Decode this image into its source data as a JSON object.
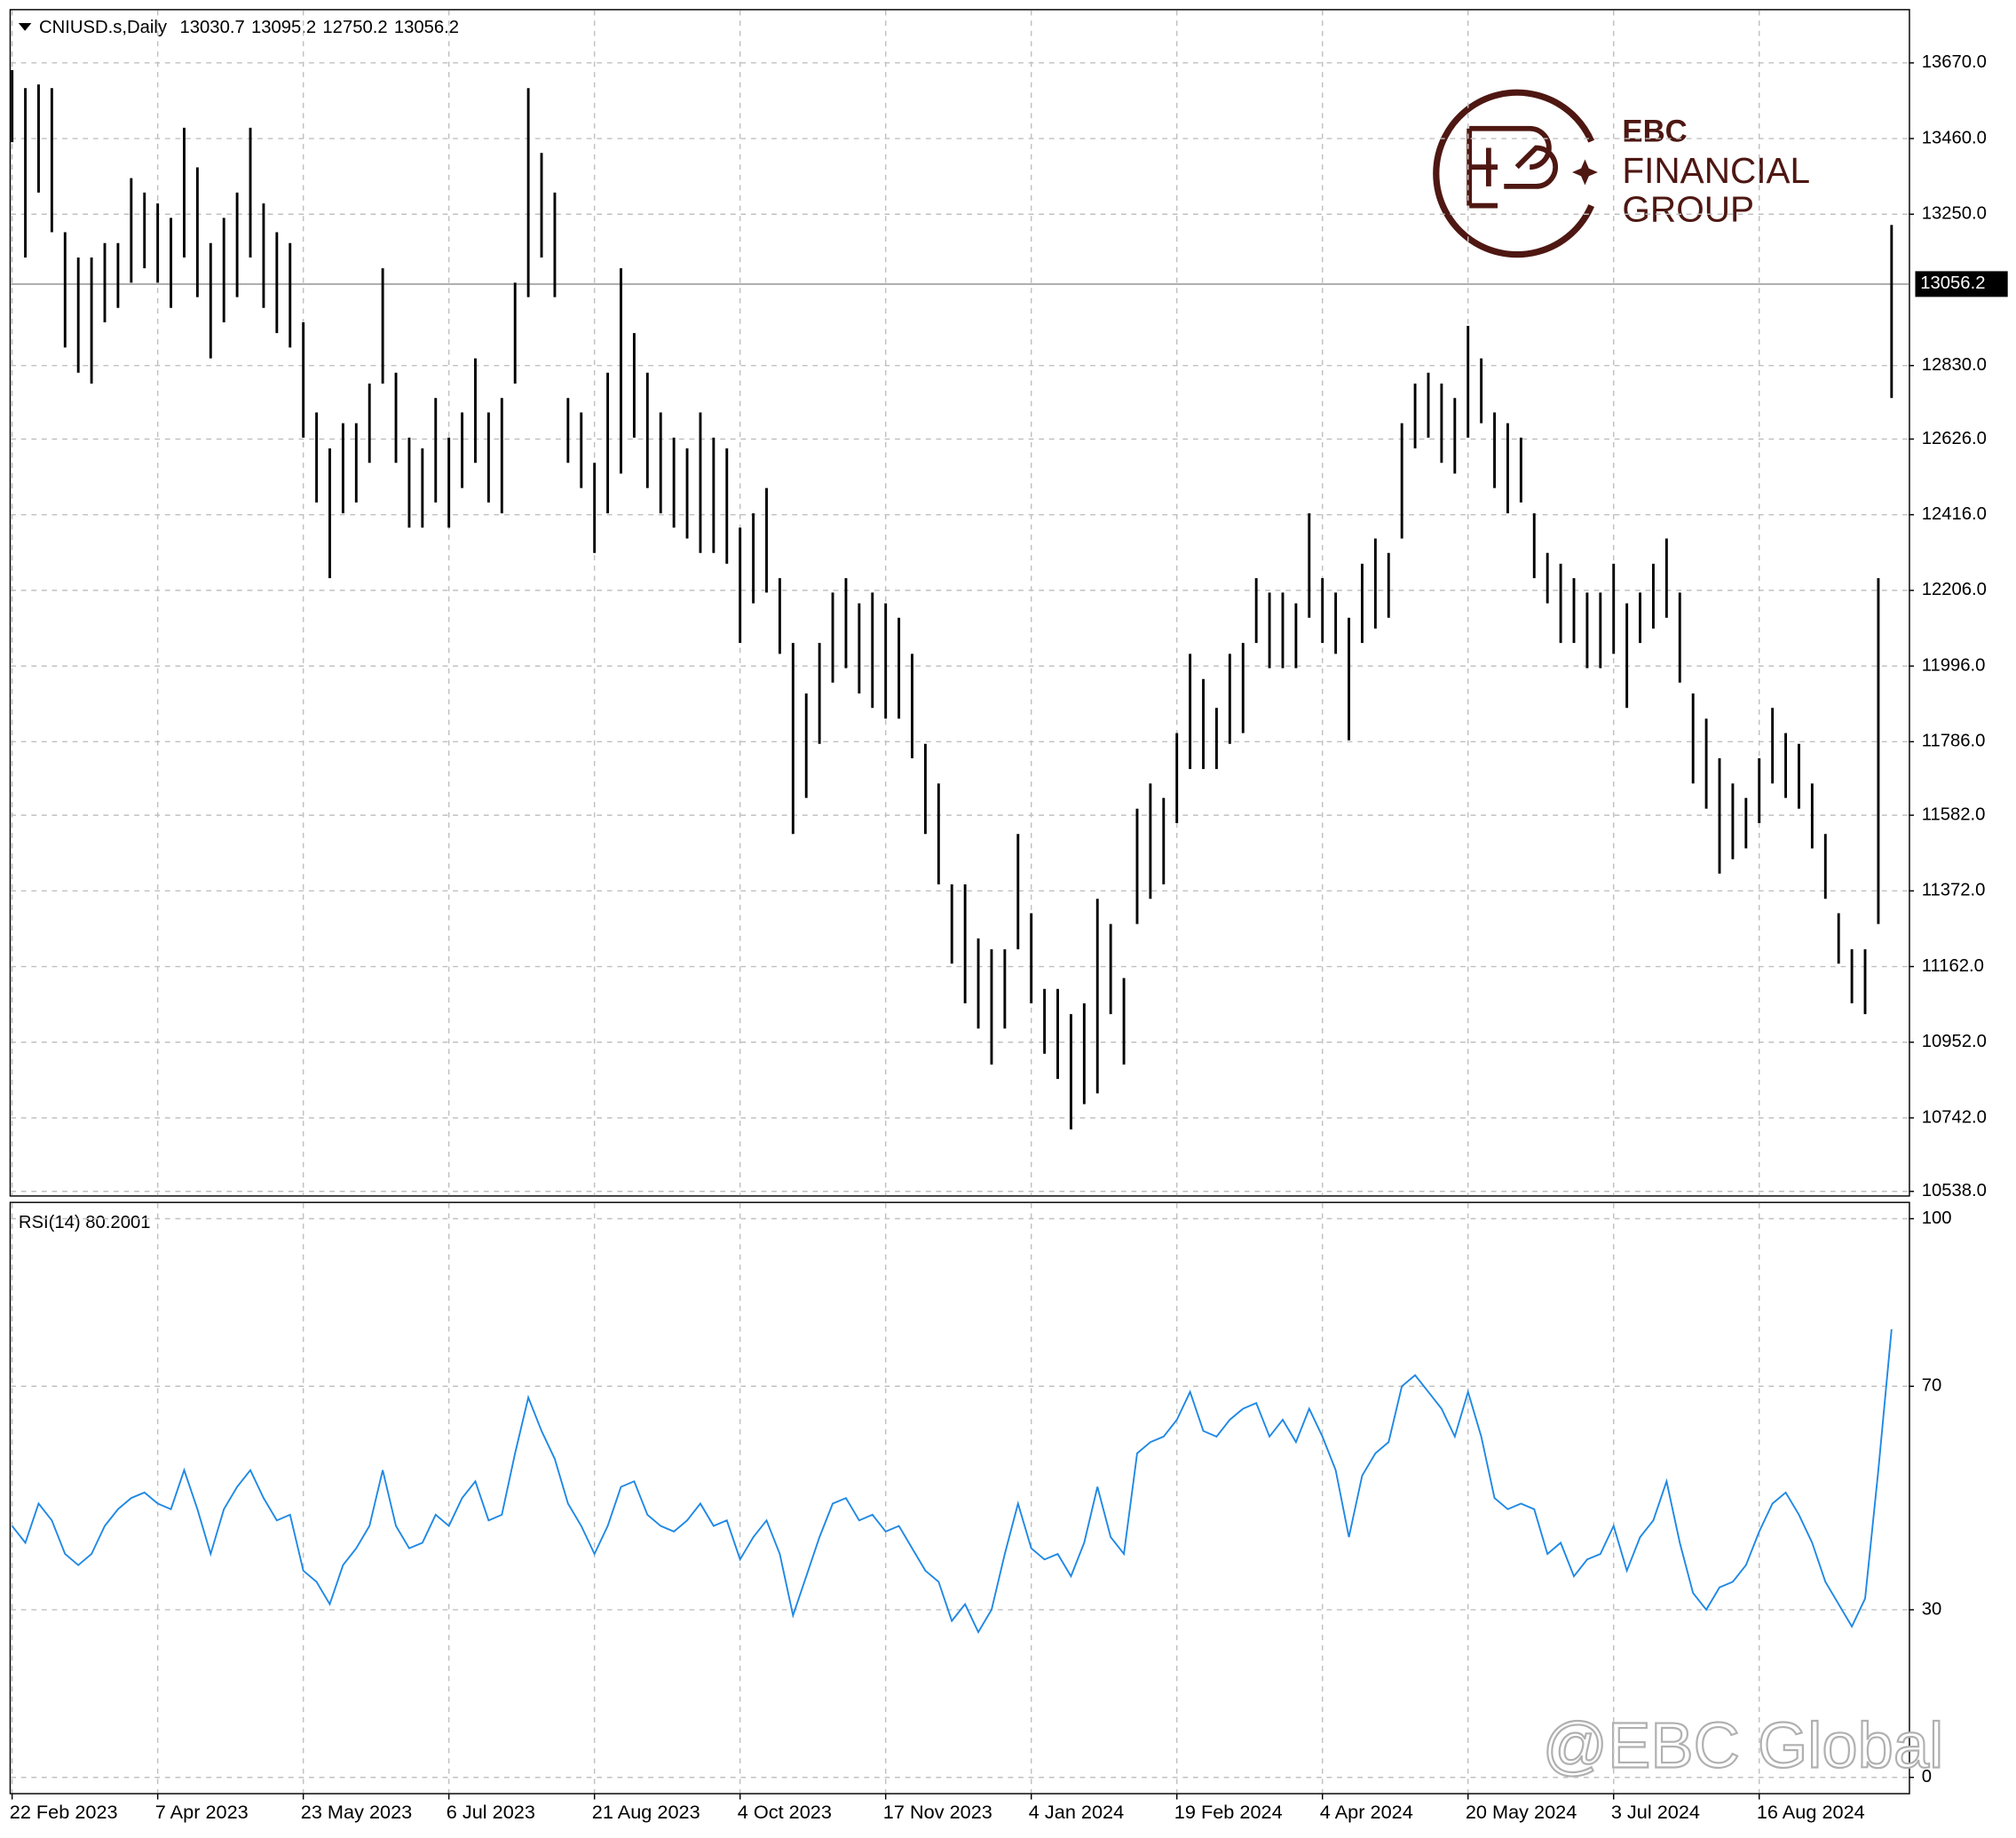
{
  "chart_data": [
    {
      "type": "ohlc",
      "title": "CNIUSD.s,Daily",
      "header_values": [
        13030.7,
        13095.2,
        12750.2,
        13056.2
      ],
      "color": "#000000",
      "last_price": 13056.2,
      "ylim": [
        10527,
        13816
      ],
      "yticks": [
        {
          "value": 13670,
          "label": "13670.0"
        },
        {
          "value": 13460,
          "label": "13460.0"
        },
        {
          "value": 13250,
          "label": "13250.0"
        },
        {
          "value": 12830,
          "label": "12830.0"
        },
        {
          "value": 12626,
          "label": "12626.0"
        },
        {
          "value": 12416,
          "label": "12416.0"
        },
        {
          "value": 12206,
          "label": "12206.0"
        },
        {
          "value": 11996,
          "label": "11996.0"
        },
        {
          "value": 11786,
          "label": "11786.0"
        },
        {
          "value": 11582,
          "label": "11582.0"
        },
        {
          "value": 11372,
          "label": "11372.0"
        },
        {
          "value": 11162,
          "label": "11162.0"
        },
        {
          "value": 10952,
          "label": "10952.0"
        },
        {
          "value": 10742,
          "label": "10742.0"
        },
        {
          "value": 10538,
          "label": "10538.0"
        }
      ],
      "grid": true,
      "categories": [
        "22 Feb 2023",
        null,
        null,
        null,
        null,
        null,
        null,
        null,
        null,
        null,
        null,
        "7 Apr 2023",
        null,
        null,
        null,
        null,
        null,
        null,
        null,
        null,
        null,
        null,
        "23 May 2023",
        null,
        null,
        null,
        null,
        null,
        null,
        null,
        null,
        null,
        null,
        "6 Jul 2023",
        null,
        null,
        null,
        null,
        null,
        null,
        null,
        null,
        null,
        null,
        "21 Aug 2023",
        null,
        null,
        null,
        null,
        null,
        null,
        null,
        null,
        null,
        null,
        "4 Oct 2023",
        null,
        null,
        null,
        null,
        null,
        null,
        null,
        null,
        null,
        null,
        "17 Nov 2023",
        null,
        null,
        null,
        null,
        null,
        null,
        null,
        null,
        null,
        null,
        "4 Jan 2024",
        null,
        null,
        null,
        null,
        null,
        null,
        null,
        null,
        null,
        null,
        "19 Feb 2024",
        null,
        null,
        null,
        null,
        null,
        null,
        null,
        null,
        null,
        null,
        "4 Apr 2024",
        null,
        null,
        null,
        null,
        null,
        null,
        null,
        null,
        null,
        null,
        "20 May 2024",
        null,
        null,
        null,
        null,
        null,
        null,
        null,
        null,
        null,
        null,
        "3 Jul 2024",
        null,
        null,
        null,
        null,
        null,
        null,
        null,
        null,
        null,
        null,
        "16 Aug 2024",
        null,
        null,
        null,
        null,
        null,
        null,
        null,
        null,
        null,
        null
      ],
      "high": [
        13650,
        13600,
        13610,
        13600,
        13200,
        13130,
        13130,
        13170,
        13170,
        13350,
        13310,
        13280,
        13240,
        13490,
        13380,
        13170,
        13240,
        13310,
        13490,
        13280,
        13200,
        13170,
        12950,
        12700,
        12600,
        12670,
        12670,
        12780,
        13100,
        12810,
        12630,
        12600,
        12740,
        12630,
        12700,
        12850,
        12700,
        12740,
        13060,
        13600,
        13420,
        13310,
        12740,
        12700,
        12560,
        12810,
        13100,
        12920,
        12810,
        12700,
        12630,
        12600,
        12700,
        12630,
        12600,
        12380,
        12420,
        12490,
        12240,
        12060,
        11920,
        12060,
        12200,
        12240,
        12170,
        12200,
        12170,
        12130,
        12030,
        11780,
        11670,
        11390,
        11390,
        11240,
        11210,
        11210,
        11530,
        11310,
        11100,
        11100,
        11030,
        11060,
        11350,
        11280,
        11130,
        11600,
        11670,
        11630,
        11810,
        12030,
        11960,
        11880,
        12030,
        12060,
        12240,
        12200,
        12200,
        12170,
        12420,
        12240,
        12200,
        12130,
        12280,
        12350,
        12310,
        12670,
        12780,
        12810,
        12780,
        12740,
        12940,
        12850,
        12700,
        12670,
        12630,
        12420,
        12310,
        12280,
        12240,
        12200,
        12200,
        12280,
        12170,
        12200,
        12280,
        12350,
        12200,
        11920,
        11850,
        11740,
        11670,
        11630,
        11740,
        11880,
        11810,
        11780,
        11670,
        11530,
        11310,
        11210,
        11210,
        12240,
        13220
      ],
      "low": [
        13450,
        13130,
        13310,
        13200,
        12880,
        12810,
        12780,
        12950,
        12990,
        13060,
        13100,
        13060,
        12990,
        13130,
        13020,
        12850,
        12950,
        13020,
        13130,
        12990,
        12920,
        12880,
        12630,
        12450,
        12240,
        12420,
        12450,
        12560,
        12780,
        12560,
        12380,
        12380,
        12450,
        12380,
        12490,
        12560,
        12450,
        12420,
        12780,
        13020,
        13130,
        13020,
        12560,
        12490,
        12310,
        12420,
        12530,
        12630,
        12490,
        12420,
        12380,
        12350,
        12310,
        12310,
        12280,
        12060,
        12170,
        12200,
        12030,
        11530,
        11630,
        11780,
        11950,
        11990,
        11920,
        11880,
        11850,
        11850,
        11740,
        11530,
        11390,
        11170,
        11060,
        10990,
        10890,
        10990,
        11210,
        11060,
        10920,
        10850,
        10710,
        10780,
        10810,
        11030,
        10890,
        11280,
        11350,
        11390,
        11560,
        11710,
        11710,
        11710,
        11780,
        11810,
        12060,
        11990,
        11990,
        11990,
        12130,
        12060,
        12030,
        11790,
        12060,
        12100,
        12130,
        12350,
        12600,
        12630,
        12560,
        12530,
        12630,
        12670,
        12490,
        12420,
        12450,
        12240,
        12170,
        12060,
        12060,
        11990,
        11990,
        12030,
        11880,
        12060,
        12100,
        12130,
        11950,
        11670,
        11600,
        11420,
        11460,
        11490,
        11560,
        11670,
        11630,
        11600,
        11490,
        11350,
        11170,
        11060,
        11030,
        11280,
        12740
      ]
    },
    {
      "type": "line",
      "title": "RSI(14) 80.2001",
      "color": "#1e88e5",
      "ylim": [
        -2.8,
        102.8
      ],
      "yticks": [
        100,
        70,
        30,
        0
      ],
      "grid": true,
      "values": [
        45,
        42,
        49,
        46,
        40,
        38,
        40,
        45,
        48,
        50,
        51,
        49,
        48,
        55,
        48,
        40,
        48,
        52,
        55,
        50,
        46,
        47,
        37,
        35,
        31,
        38,
        41,
        45,
        55,
        45,
        41,
        42,
        47,
        45,
        50,
        53,
        46,
        47,
        58,
        68,
        62,
        57,
        49,
        45,
        40,
        45,
        52,
        53,
        47,
        45,
        44,
        46,
        49,
        45,
        46,
        39,
        43,
        46,
        40,
        29,
        36,
        43,
        49,
        50,
        46,
        47,
        44,
        45,
        41,
        37,
        35,
        28,
        31,
        26,
        30,
        40,
        49,
        41,
        39,
        40,
        36,
        42,
        52,
        43,
        40,
        58,
        60,
        61,
        64,
        69,
        62,
        61,
        64,
        66,
        67,
        61,
        64,
        60,
        66,
        61,
        55,
        43,
        54,
        58,
        60,
        70,
        72,
        69,
        66,
        61,
        69,
        61,
        50,
        48,
        49,
        48,
        40,
        42,
        36,
        39,
        40,
        45,
        37,
        43,
        46,
        53,
        42,
        33,
        30,
        34,
        35,
        38,
        44,
        49,
        51,
        47,
        42,
        35,
        31,
        27,
        32,
        55,
        80.2001
      ]
    }
  ],
  "logo": {
    "line1": "EBC",
    "line2": "FINANCIAL",
    "line3": "GROUP"
  },
  "watermark": "@EBC Global"
}
